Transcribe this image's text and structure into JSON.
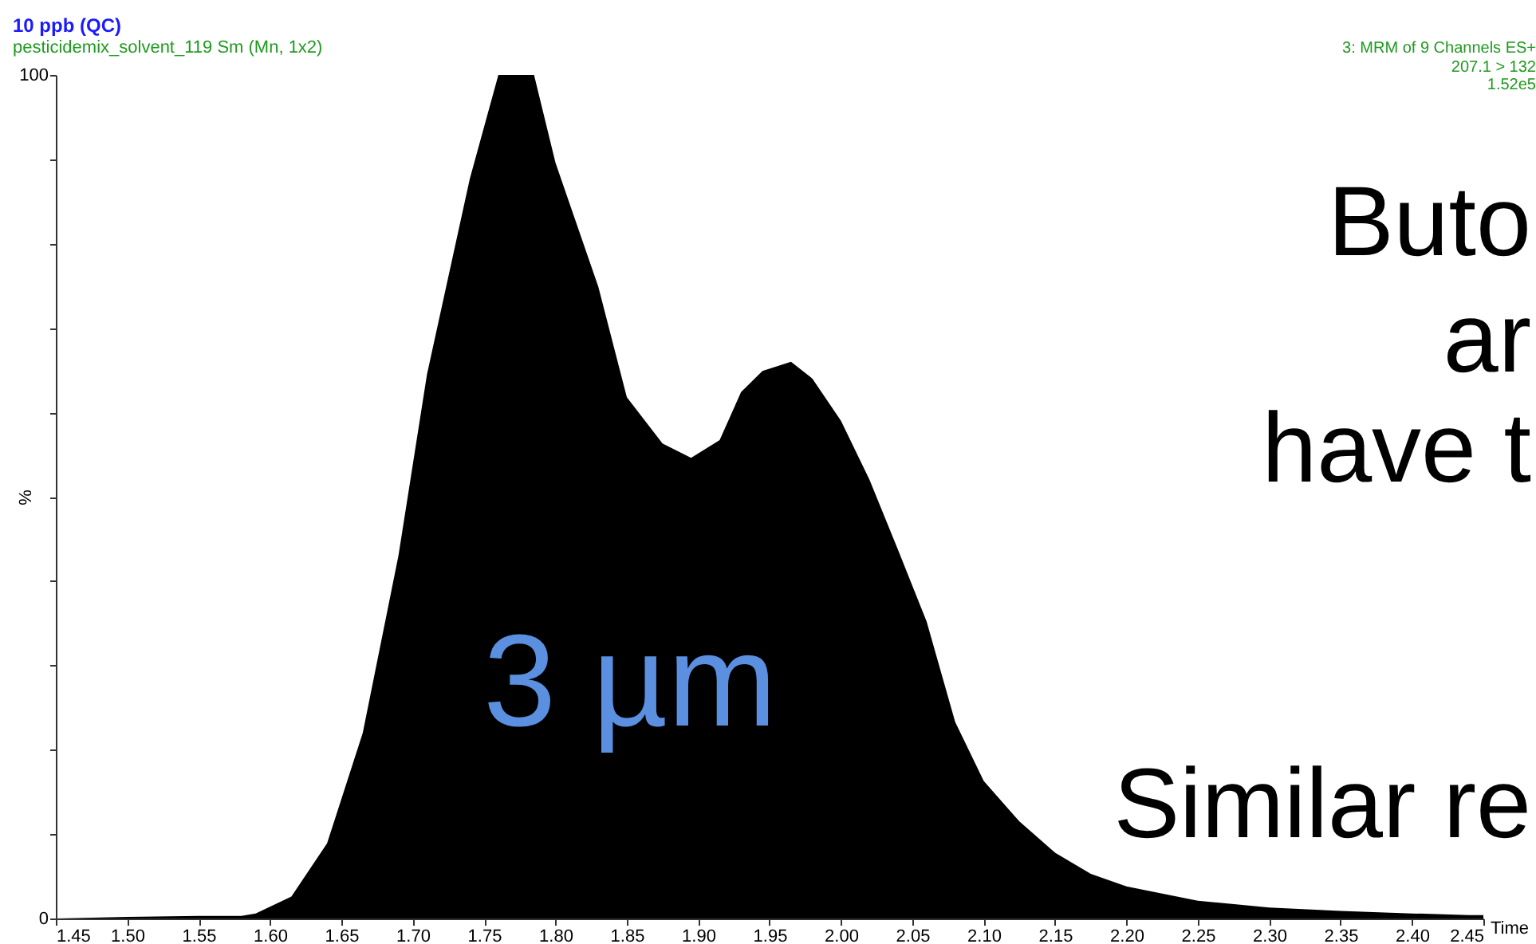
{
  "chart_data": {
    "type": "area",
    "title": "10 ppb (QC)",
    "subtitle": "pesticidemix_solvent_119 Sm (Mn, 1x2)",
    "xlabel": "Time",
    "ylabel": "%",
    "x": [
      1.45,
      1.5,
      1.55,
      1.58,
      1.59,
      1.615,
      1.64,
      1.665,
      1.69,
      1.71,
      1.74,
      1.76,
      1.785,
      1.8,
      1.83,
      1.85,
      1.875,
      1.895,
      1.915,
      1.93,
      1.945,
      1.965,
      1.98,
      2.0,
      2.02,
      2.04,
      2.06,
      2.08,
      2.1,
      2.125,
      2.15,
      2.175,
      2.2,
      2.25,
      2.3,
      2.35,
      2.4,
      2.44,
      2.45
    ],
    "series": [
      {
        "color": "#000000",
        "values": [
          0,
          0.2,
          0.3,
          0.3,
          0.6,
          2.6,
          8.9,
          22,
          43,
          64.5,
          87.7,
          100,
          100,
          89.6,
          74.9,
          61.8,
          56.3,
          54.6,
          56.7,
          62.4,
          64.9,
          66,
          64,
          59,
          52,
          43.7,
          35.2,
          23.3,
          16.3,
          11.5,
          7.8,
          5.3,
          3.8,
          2.1,
          1.3,
          0.9,
          0.6,
          0.4,
          0.4
        ]
      }
    ],
    "xlim": [
      1.45,
      2.45
    ],
    "xticks": [
      1.45,
      {
        "value": 1.5,
        "label": "1.50"
      },
      1.55,
      {
        "value": 1.6,
        "label": "1.60"
      },
      1.65,
      {
        "value": 1.7,
        "label": "1.70"
      },
      1.75,
      {
        "value": 1.8,
        "label": "1.80"
      },
      1.85,
      {
        "value": 1.9,
        "label": "1.90"
      },
      1.95,
      {
        "value": 2.0,
        "label": "2.00"
      },
      2.05,
      {
        "value": 2.1,
        "label": "2.10"
      },
      2.15,
      {
        "value": 2.2,
        "label": "2.20"
      },
      2.25,
      {
        "value": 2.3,
        "label": "2.30"
      },
      2.35,
      {
        "value": 2.4,
        "label": "2.40"
      },
      2.45
    ],
    "ylim": [
      0,
      100
    ],
    "yticks": [
      0,
      {
        "value": 10,
        "label": null
      },
      {
        "value": 20,
        "label": null
      },
      {
        "value": 30,
        "label": null
      },
      {
        "value": 40,
        "label": null
      },
      {
        "value": 50,
        "label": null
      },
      {
        "value": 60,
        "label": null
      },
      {
        "value": 70,
        "label": null
      },
      {
        "value": 80,
        "label": null
      },
      {
        "value": 90,
        "label": null
      },
      100
    ],
    "grid": false,
    "annotations": [
      "3: MRM of 9 Channels ES+",
      "207.1 > 132",
      "1.52e5",
      "Buto",
      "ar",
      "have t",
      "Similar re",
      "3 µm"
    ]
  }
}
